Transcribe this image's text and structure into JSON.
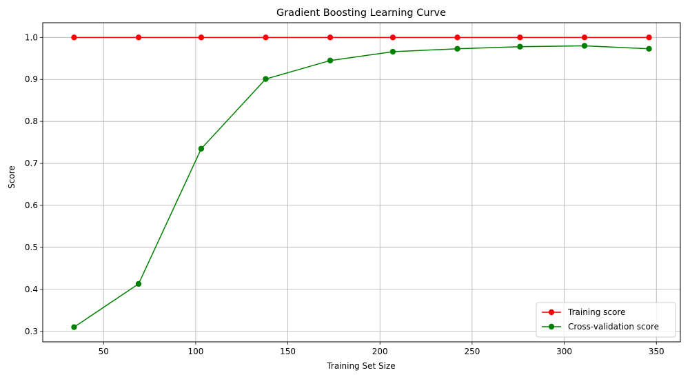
{
  "chart_data": {
    "type": "line",
    "title": "Gradient Boosting Learning Curve",
    "xlabel": "Training Set Size",
    "ylabel": "Score",
    "x": [
      34,
      69,
      103,
      138,
      173,
      207,
      242,
      276,
      311,
      346
    ],
    "xlim": [
      17,
      363
    ],
    "ylim": [
      0.275,
      1.035
    ],
    "xticks": [
      50,
      100,
      150,
      200,
      250,
      300,
      350
    ],
    "yticks": [
      0.3,
      0.4,
      0.5,
      0.6,
      0.7,
      0.8,
      0.9,
      1.0
    ],
    "grid": true,
    "legend_position": "lower-right",
    "series": [
      {
        "name": "Training score",
        "color": "#ff0000",
        "marker": "circle",
        "values": [
          1.0,
          1.0,
          1.0,
          1.0,
          1.0,
          1.0,
          1.0,
          1.0,
          1.0,
          1.0
        ]
      },
      {
        "name": "Cross-validation score",
        "color": "#008000",
        "marker": "circle",
        "values": [
          0.31,
          0.413,
          0.735,
          0.901,
          0.945,
          0.966,
          0.973,
          0.978,
          0.98,
          0.973
        ]
      }
    ]
  }
}
